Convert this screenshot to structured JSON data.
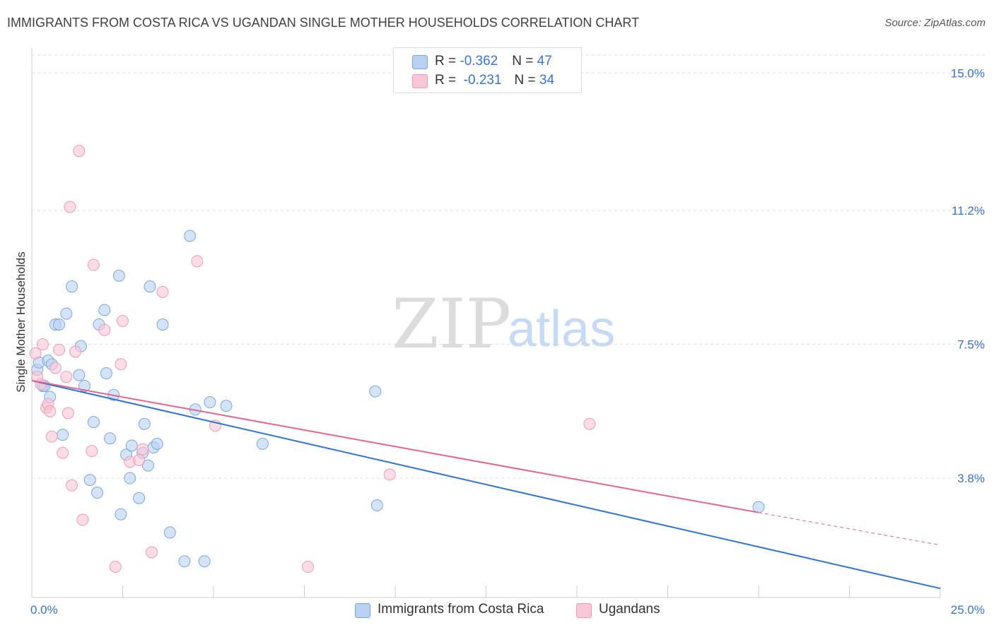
{
  "header": {
    "title": "IMMIGRANTS FROM COSTA RICA VS UGANDAN SINGLE MOTHER HOUSEHOLDS CORRELATION CHART",
    "source": "Source: ZipAtlas.com"
  },
  "watermark": {
    "zip": "ZIP",
    "atlas": "atlas"
  },
  "legend": {
    "series": [
      {
        "name": "Immigrants from Costa Rica",
        "r_label": "R = ",
        "r_value": "-0.362",
        "n_label": "N = ",
        "n_value": "47"
      },
      {
        "name": "Ugandans",
        "r_label": "R = ",
        "r_value": " -0.231",
        "n_label": "N = ",
        "n_value": "34"
      }
    ]
  },
  "colors": {
    "blue_fill": "#b9d0f2",
    "blue_stroke": "#7ba7e0",
    "blue_line": "#2e74d0",
    "pink_fill": "#f8c6d6",
    "pink_stroke": "#ee9bb6",
    "pink_line": "#e0668f",
    "tick_label": "#3a73c8",
    "grid": "#dddddd"
  },
  "chart_data": {
    "type": "scatter",
    "title": "IMMIGRANTS FROM COSTA RICA VS UGANDAN SINGLE MOTHER HOUSEHOLDS CORRELATION CHART",
    "xlabel": "",
    "ylabel": "Single Mother Households",
    "xlim": [
      0,
      25
    ],
    "ylim": [
      0.5,
      15.5
    ],
    "x_ticks": [
      0,
      2.5,
      5,
      7.5,
      10,
      12.5,
      15,
      17.5,
      20,
      22.5,
      25
    ],
    "x_tick_labels": [
      {
        "value": 0,
        "label": "0.0%"
      },
      {
        "value": 25,
        "label": "25.0%"
      }
    ],
    "y_ticks": [
      {
        "value": 3.8,
        "label": "3.8%"
      },
      {
        "value": 7.5,
        "label": "7.5%"
      },
      {
        "value": 11.2,
        "label": "11.2%"
      },
      {
        "value": 15.0,
        "label": "15.0%"
      }
    ],
    "grid": "horizontal dashed",
    "legend_position": "top-center",
    "series": [
      {
        "name": "Immigrants from Costa Rica",
        "color": "#2e74d0",
        "points": [
          [
            0.15,
            6.8
          ],
          [
            0.2,
            7.0
          ],
          [
            0.3,
            6.35
          ],
          [
            0.35,
            6.35
          ],
          [
            0.45,
            7.05
          ],
          [
            0.5,
            6.05
          ],
          [
            0.55,
            6.95
          ],
          [
            0.65,
            8.05
          ],
          [
            0.75,
            8.05
          ],
          [
            0.85,
            5.0
          ],
          [
            0.95,
            8.35
          ],
          [
            1.1,
            9.1
          ],
          [
            1.3,
            6.65
          ],
          [
            1.35,
            7.45
          ],
          [
            1.45,
            6.35
          ],
          [
            1.6,
            3.75
          ],
          [
            1.7,
            5.35
          ],
          [
            1.8,
            3.4
          ],
          [
            1.85,
            8.05
          ],
          [
            2.0,
            8.45
          ],
          [
            2.05,
            6.7
          ],
          [
            2.15,
            4.9
          ],
          [
            2.25,
            6.1
          ],
          [
            2.4,
            9.4
          ],
          [
            2.45,
            2.8
          ],
          [
            2.6,
            4.45
          ],
          [
            2.7,
            3.8
          ],
          [
            2.75,
            4.7
          ],
          [
            2.95,
            3.25
          ],
          [
            3.05,
            4.5
          ],
          [
            3.1,
            5.3
          ],
          [
            3.2,
            4.15
          ],
          [
            3.25,
            9.1
          ],
          [
            3.35,
            4.65
          ],
          [
            3.45,
            4.75
          ],
          [
            3.6,
            8.05
          ],
          [
            3.8,
            2.3
          ],
          [
            4.2,
            1.5
          ],
          [
            4.35,
            10.5
          ],
          [
            4.5,
            5.7
          ],
          [
            4.75,
            1.5
          ],
          [
            4.9,
            5.9
          ],
          [
            5.35,
            5.8
          ],
          [
            6.35,
            4.75
          ],
          [
            9.45,
            6.2
          ],
          [
            9.5,
            3.05
          ],
          [
            20.0,
            3.0
          ]
        ],
        "trend": {
          "x": [
            0,
            25
          ],
          "y": [
            6.5,
            0.75
          ]
        }
      },
      {
        "name": "Ugandans",
        "color": "#e0668f",
        "points": [
          [
            0.1,
            7.25
          ],
          [
            0.15,
            6.6
          ],
          [
            0.25,
            6.4
          ],
          [
            0.3,
            7.5
          ],
          [
            0.4,
            5.75
          ],
          [
            0.45,
            5.85
          ],
          [
            0.5,
            5.65
          ],
          [
            0.55,
            4.95
          ],
          [
            0.65,
            6.85
          ],
          [
            0.75,
            7.35
          ],
          [
            0.85,
            4.5
          ],
          [
            0.95,
            6.6
          ],
          [
            1.0,
            5.6
          ],
          [
            1.05,
            11.3
          ],
          [
            1.1,
            3.6
          ],
          [
            1.2,
            7.3
          ],
          [
            1.3,
            12.85
          ],
          [
            1.4,
            2.65
          ],
          [
            1.65,
            4.55
          ],
          [
            1.7,
            9.7
          ],
          [
            2.0,
            7.9
          ],
          [
            2.3,
            1.35
          ],
          [
            2.45,
            6.95
          ],
          [
            2.5,
            8.15
          ],
          [
            2.7,
            4.25
          ],
          [
            2.95,
            4.3
          ],
          [
            3.05,
            4.6
          ],
          [
            3.3,
            1.75
          ],
          [
            3.6,
            8.95
          ],
          [
            4.55,
            9.8
          ],
          [
            5.05,
            5.25
          ],
          [
            7.6,
            1.35
          ],
          [
            9.85,
            3.9
          ],
          [
            15.35,
            5.3
          ]
        ],
        "trend": {
          "x": [
            0,
            20
          ],
          "y": [
            6.5,
            2.85
          ]
        },
        "trend_extension": {
          "x": [
            20,
            25
          ],
          "y": [
            2.85,
            1.95
          ]
        }
      }
    ]
  }
}
